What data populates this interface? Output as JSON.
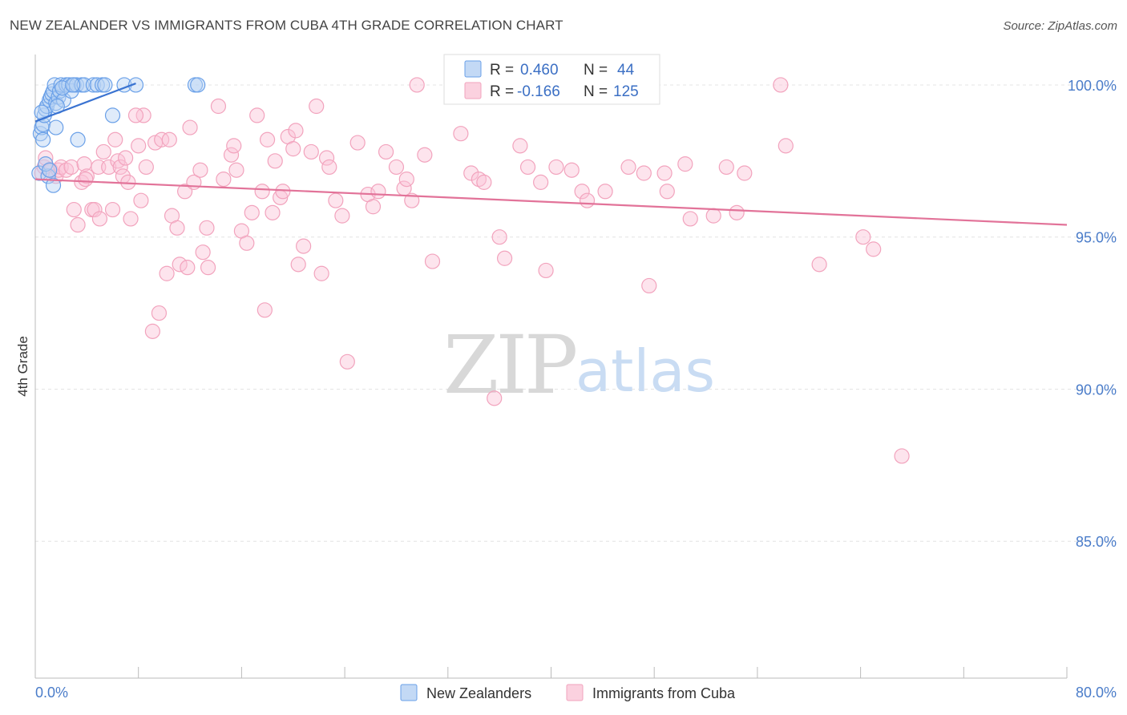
{
  "title": "NEW ZEALANDER VS IMMIGRANTS FROM CUBA 4TH GRADE CORRELATION CHART",
  "source": "Source: ZipAtlas.com",
  "watermark": {
    "zip": "ZIP",
    "atlas": "atlas"
  },
  "legend": {
    "rows": [
      {
        "r_label": "R =",
        "r_value": "0.460",
        "n_label": "N =",
        "n_value": "44",
        "color": "#6aa0e8"
      },
      {
        "r_label": "R =",
        "r_value": "-0.166",
        "n_label": "N =",
        "n_value": "125",
        "color": "#f2a3bd"
      }
    ]
  },
  "chart_data": {
    "type": "scatter",
    "title": "NEW ZEALANDER VS IMMIGRANTS FROM CUBA 4TH GRADE CORRELATION CHART",
    "xlabel": "",
    "ylabel": "4th Grade",
    "xlim": [
      0,
      80
    ],
    "ylim": [
      80.5,
      101.0
    ],
    "x_tick_labels": [
      "0.0%",
      "80.0%"
    ],
    "y_ticks": [
      85,
      90,
      95,
      100
    ],
    "y_tick_labels": [
      "85.0%",
      "90.0%",
      "95.0%",
      "100.0%"
    ],
    "grid": true,
    "legend_position": "top-center",
    "series": [
      {
        "name": "New Zealanders",
        "color": "#6aa0e8",
        "trend": [
          [
            0.0,
            98.8
          ],
          [
            7.8,
            100.05
          ]
        ],
        "points": [
          [
            0.3,
            97.1
          ],
          [
            0.4,
            98.4
          ],
          [
            0.5,
            98.6
          ],
          [
            0.6,
            98.7
          ],
          [
            0.7,
            99.0
          ],
          [
            0.8,
            99.2
          ],
          [
            0.9,
            99.3
          ],
          [
            0.6,
            98.2
          ],
          [
            1.0,
            97.0
          ],
          [
            1.1,
            99.5
          ],
          [
            1.2,
            99.6
          ],
          [
            1.3,
            99.7
          ],
          [
            1.4,
            99.8
          ],
          [
            1.5,
            100.0
          ],
          [
            1.6,
            99.4
          ],
          [
            1.8,
            99.6
          ],
          [
            1.9,
            99.8
          ],
          [
            2.0,
            100.0
          ],
          [
            2.2,
            99.5
          ],
          [
            2.4,
            100.0
          ],
          [
            2.6,
            100.0
          ],
          [
            2.8,
            99.8
          ],
          [
            3.0,
            100.0
          ],
          [
            1.4,
            96.7
          ],
          [
            1.6,
            98.6
          ],
          [
            3.2,
            100.0
          ],
          [
            3.6,
            100.0
          ],
          [
            3.8,
            100.0
          ],
          [
            4.5,
            100.0
          ],
          [
            4.8,
            100.0
          ],
          [
            5.2,
            100.0
          ],
          [
            5.4,
            100.0
          ],
          [
            6.9,
            100.0
          ],
          [
            7.8,
            100.0
          ],
          [
            12.4,
            100.0
          ],
          [
            12.6,
            100.0
          ],
          [
            6.0,
            99.0
          ],
          [
            2.1,
            99.9
          ],
          [
            0.8,
            97.4
          ],
          [
            3.3,
            98.2
          ],
          [
            1.1,
            97.2
          ],
          [
            0.5,
            99.1
          ],
          [
            1.7,
            99.3
          ],
          [
            2.9,
            100.0
          ]
        ]
      },
      {
        "name": "Immigrants from Cuba",
        "color": "#f2a3bd",
        "trend": [
          [
            0.0,
            96.9
          ],
          [
            80.0,
            95.4
          ]
        ],
        "points": [
          [
            0.5,
            97.1
          ],
          [
            0.7,
            97.3
          ],
          [
            0.8,
            97.6
          ],
          [
            1.2,
            97.2
          ],
          [
            1.6,
            97.0
          ],
          [
            1.8,
            97.2
          ],
          [
            2.0,
            97.3
          ],
          [
            2.4,
            97.2
          ],
          [
            2.8,
            97.3
          ],
          [
            3.0,
            95.9
          ],
          [
            3.3,
            95.4
          ],
          [
            3.6,
            96.8
          ],
          [
            3.8,
            97.4
          ],
          [
            4.0,
            97.0
          ],
          [
            4.4,
            95.9
          ],
          [
            4.6,
            95.9
          ],
          [
            4.9,
            97.3
          ],
          [
            5.0,
            95.6
          ],
          [
            5.3,
            97.8
          ],
          [
            5.7,
            97.3
          ],
          [
            6.0,
            95.9
          ],
          [
            6.2,
            98.2
          ],
          [
            6.4,
            97.5
          ],
          [
            6.6,
            97.3
          ],
          [
            6.8,
            97.0
          ],
          [
            7.0,
            97.6
          ],
          [
            7.2,
            96.8
          ],
          [
            7.4,
            95.6
          ],
          [
            8.0,
            98.0
          ],
          [
            8.2,
            96.2
          ],
          [
            8.4,
            99.0
          ],
          [
            8.6,
            97.3
          ],
          [
            9.1,
            91.9
          ],
          [
            9.3,
            98.1
          ],
          [
            9.6,
            92.5
          ],
          [
            9.8,
            98.2
          ],
          [
            10.2,
            93.8
          ],
          [
            10.4,
            98.2
          ],
          [
            10.6,
            95.7
          ],
          [
            11.0,
            95.3
          ],
          [
            11.2,
            94.1
          ],
          [
            11.6,
            96.5
          ],
          [
            11.8,
            94.0
          ],
          [
            12.0,
            98.6
          ],
          [
            12.3,
            96.8
          ],
          [
            12.8,
            97.2
          ],
          [
            13.0,
            94.5
          ],
          [
            13.3,
            95.3
          ],
          [
            13.4,
            94.0
          ],
          [
            14.2,
            99.3
          ],
          [
            14.6,
            96.9
          ],
          [
            15.2,
            97.7
          ],
          [
            15.4,
            98.0
          ],
          [
            15.6,
            97.2
          ],
          [
            16.0,
            95.2
          ],
          [
            16.4,
            94.8
          ],
          [
            16.8,
            95.8
          ],
          [
            17.2,
            99.0
          ],
          [
            17.6,
            96.5
          ],
          [
            17.8,
            92.6
          ],
          [
            18.0,
            98.2
          ],
          [
            18.4,
            95.8
          ],
          [
            18.6,
            97.5
          ],
          [
            19.0,
            96.3
          ],
          [
            19.2,
            96.5
          ],
          [
            19.6,
            98.3
          ],
          [
            20.0,
            97.9
          ],
          [
            20.2,
            98.5
          ],
          [
            20.4,
            94.1
          ],
          [
            20.8,
            94.7
          ],
          [
            21.4,
            97.8
          ],
          [
            21.8,
            99.3
          ],
          [
            22.2,
            93.8
          ],
          [
            22.6,
            97.6
          ],
          [
            22.8,
            97.3
          ],
          [
            23.3,
            96.2
          ],
          [
            23.8,
            95.7
          ],
          [
            24.2,
            90.9
          ],
          [
            25.0,
            98.1
          ],
          [
            25.8,
            96.4
          ],
          [
            26.2,
            96.0
          ],
          [
            26.6,
            96.5
          ],
          [
            27.2,
            97.8
          ],
          [
            28.0,
            97.3
          ],
          [
            28.6,
            96.6
          ],
          [
            28.8,
            96.9
          ],
          [
            29.2,
            96.2
          ],
          [
            29.6,
            100.0
          ],
          [
            30.2,
            97.7
          ],
          [
            30.8,
            94.2
          ],
          [
            33.0,
            98.4
          ],
          [
            33.8,
            97.1
          ],
          [
            34.4,
            96.9
          ],
          [
            34.8,
            96.8
          ],
          [
            35.6,
            89.7
          ],
          [
            36.0,
            95.0
          ],
          [
            36.4,
            94.3
          ],
          [
            37.6,
            98.0
          ],
          [
            38.2,
            97.3
          ],
          [
            39.2,
            96.8
          ],
          [
            39.6,
            93.9
          ],
          [
            40.4,
            97.3
          ],
          [
            41.6,
            97.2
          ],
          [
            42.4,
            96.5
          ],
          [
            42.8,
            96.2
          ],
          [
            44.2,
            96.5
          ],
          [
            46.0,
            97.3
          ],
          [
            47.2,
            97.1
          ],
          [
            47.6,
            93.4
          ],
          [
            48.8,
            97.1
          ],
          [
            49.0,
            96.5
          ],
          [
            50.4,
            97.4
          ],
          [
            50.8,
            95.6
          ],
          [
            52.6,
            95.7
          ],
          [
            53.6,
            97.3
          ],
          [
            54.4,
            95.8
          ],
          [
            55.0,
            97.1
          ],
          [
            57.8,
            100.0
          ],
          [
            58.2,
            98.0
          ],
          [
            60.8,
            94.1
          ],
          [
            64.2,
            95.0
          ],
          [
            65.0,
            94.6
          ],
          [
            67.2,
            87.8
          ],
          [
            7.8,
            99.0
          ],
          [
            3.9,
            96.9
          ]
        ]
      }
    ]
  },
  "bottom_legend": [
    {
      "label": "New Zealanders",
      "color": "#6aa0e8"
    },
    {
      "label": "Immigrants from Cuba",
      "color": "#f2a3bd"
    }
  ]
}
